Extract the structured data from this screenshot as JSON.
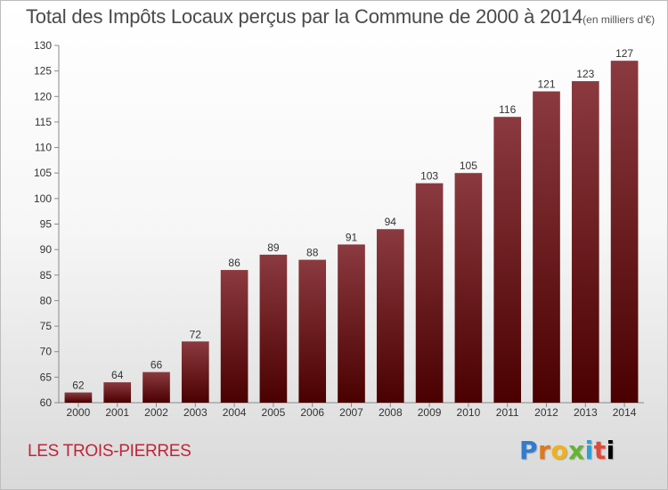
{
  "title": "Total des Impôts Locaux perçus par la Commune de 2000 à 2014",
  "title_unit": "(en milliers d'€)",
  "commune": "LES TROIS-PIERRES",
  "logo": [
    "P",
    "r",
    "o",
    "x",
    "i",
    "t",
    "i"
  ],
  "colors": {
    "bar_top": "#8b3a3f",
    "bar_bottom": "#4a0000",
    "commune_text": "#c0243a"
  },
  "chart_data": {
    "type": "bar",
    "categories": [
      "2000",
      "2001",
      "2002",
      "2003",
      "2004",
      "2005",
      "2006",
      "2007",
      "2008",
      "2009",
      "2010",
      "2011",
      "2012",
      "2013",
      "2014"
    ],
    "values": [
      62,
      64,
      66,
      72,
      86,
      89,
      88,
      91,
      94,
      103,
      105,
      116,
      121,
      123,
      127
    ],
    "title": "Total des Impôts Locaux perçus par la Commune de 2000 à 2014",
    "xlabel": "",
    "ylabel": "",
    "ylim": [
      60,
      130
    ],
    "yticks": [
      60,
      65,
      70,
      75,
      80,
      85,
      90,
      95,
      100,
      105,
      110,
      115,
      120,
      125,
      130
    ],
    "grid": false,
    "legend": "none",
    "data_labels": true
  }
}
